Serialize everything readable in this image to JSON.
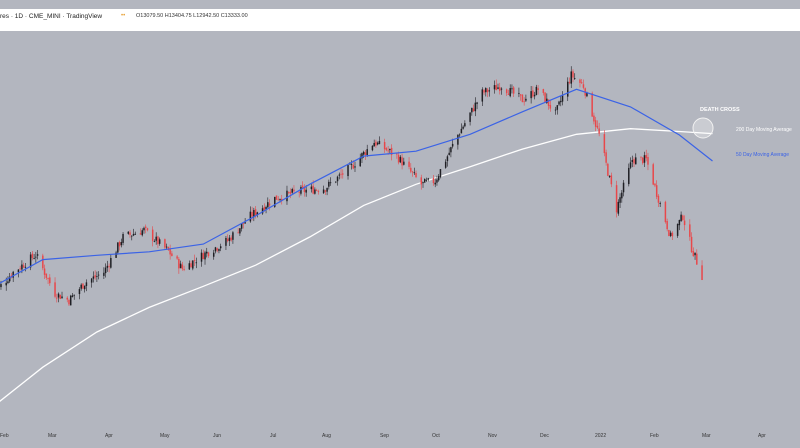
{
  "header": {
    "symbol_text": "res · 1D · CME_MINI · TradingView",
    "ohlc_text": "O13079.50 H13404.75 L12942.50 C13333.00"
  },
  "colors": {
    "background": "#b3b6bf",
    "candle_up": "#1f1f24",
    "candle_down": "#e8474a",
    "ma200": "#ffffff",
    "ma50": "#3b63e6"
  },
  "chart_data": {
    "type": "candlestick",
    "x_tick_labels": [
      "Feb",
      "Mar",
      "Apr",
      "May",
      "Jun",
      "Jul",
      "Aug",
      "Sep",
      "Oct",
      "Nov",
      "Dec",
      "2022",
      "Feb",
      "Mar",
      "Apr"
    ],
    "annotations": [
      {
        "text": "DEATH CROSS"
      },
      {
        "text": "200 Day Moving Average"
      },
      {
        "text": "50 Day Moving Average"
      }
    ],
    "ylim": [
      11500,
      16900
    ],
    "x_range": [
      "2021-02-01",
      "2022-04-30"
    ],
    "series": [
      {
        "name": "200 Day Moving Average",
        "points": [
          [
            "2021-02-01",
            11700
          ],
          [
            "2021-03-01",
            12250
          ],
          [
            "2021-04-01",
            12750
          ],
          [
            "2021-05-01",
            13100
          ],
          [
            "2021-06-01",
            13400
          ],
          [
            "2021-07-01",
            13700
          ],
          [
            "2021-08-01",
            14100
          ],
          [
            "2021-09-01",
            14550
          ],
          [
            "2021-10-01",
            14850
          ],
          [
            "2021-11-01",
            15100
          ],
          [
            "2021-12-01",
            15350
          ],
          [
            "2022-01-01",
            15560
          ],
          [
            "2022-02-01",
            15640
          ],
          [
            "2022-03-01",
            15600
          ],
          [
            "2022-03-20",
            15570
          ]
        ]
      },
      {
        "name": "50 Day Moving Average",
        "points": [
          [
            "2021-02-01",
            13400
          ],
          [
            "2021-03-01",
            13780
          ],
          [
            "2021-04-01",
            13840
          ],
          [
            "2021-05-01",
            13890
          ],
          [
            "2021-06-01",
            14000
          ],
          [
            "2021-07-01",
            14400
          ],
          [
            "2021-08-01",
            14850
          ],
          [
            "2021-09-01",
            15250
          ],
          [
            "2021-10-01",
            15320
          ],
          [
            "2021-11-01",
            15560
          ],
          [
            "2021-12-01",
            15880
          ],
          [
            "2022-01-01",
            16200
          ],
          [
            "2022-02-01",
            15950
          ],
          [
            "2022-03-01",
            15550
          ],
          [
            "2022-03-20",
            15180
          ]
        ]
      },
      {
        "name": "price",
        "points": [
          [
            "2021-02-01",
            13300
          ],
          [
            "2021-02-12",
            13600
          ],
          [
            "2021-02-25",
            13850
          ],
          [
            "2021-03-08",
            13300
          ],
          [
            "2021-03-16",
            13200
          ],
          [
            "2021-03-25",
            13450
          ],
          [
            "2021-04-05",
            13600
          ],
          [
            "2021-04-16",
            14100
          ],
          [
            "2021-04-28",
            14200
          ],
          [
            "2021-05-12",
            13900
          ],
          [
            "2021-05-20",
            13650
          ],
          [
            "2021-06-01",
            13850
          ],
          [
            "2021-06-15",
            14050
          ],
          [
            "2021-06-28",
            14400
          ],
          [
            "2021-07-12",
            14650
          ],
          [
            "2021-07-26",
            14750
          ],
          [
            "2021-08-10",
            14800
          ],
          [
            "2021-08-25",
            15100
          ],
          [
            "2021-09-07",
            15450
          ],
          [
            "2021-09-20",
            15250
          ],
          [
            "2021-10-04",
            14850
          ],
          [
            "2021-10-12",
            14900
          ],
          [
            "2021-10-25",
            15550
          ],
          [
            "2021-11-08",
            16150
          ],
          [
            "2021-11-19",
            16250
          ],
          [
            "2021-12-01",
            16050
          ],
          [
            "2021-12-10",
            16200
          ],
          [
            "2021-12-20",
            15850
          ],
          [
            "2021-12-29",
            16400
          ],
          [
            "2022-01-05",
            16250
          ],
          [
            "2022-01-14",
            15550
          ],
          [
            "2022-01-24",
            14500
          ],
          [
            "2022-02-02",
            15200
          ],
          [
            "2022-02-10",
            15200
          ],
          [
            "2022-02-24",
            14100
          ],
          [
            "2022-03-03",
            14400
          ],
          [
            "2022-03-08",
            13950
          ],
          [
            "2022-03-14",
            13550
          ]
        ]
      }
    ]
  }
}
